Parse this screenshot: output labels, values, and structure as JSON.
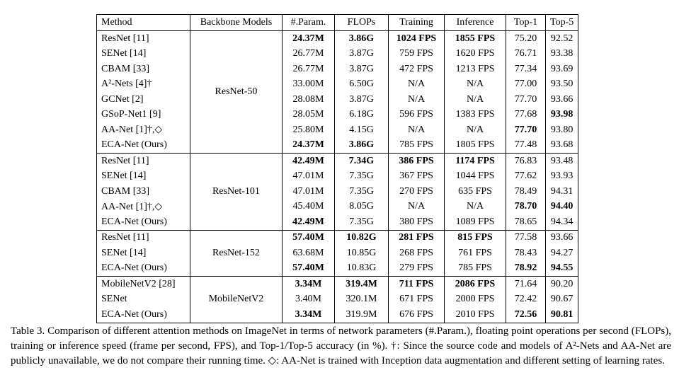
{
  "table": {
    "header": [
      "Method",
      "Backbone Models",
      "#.Param.",
      "FLOPs",
      "Training",
      "Inference",
      "Top-1",
      "Top-5"
    ],
    "groups": [
      {
        "backbone": "ResNet-50",
        "rows": [
          {
            "cells": [
              "ResNet [11]",
              "24.37M",
              "3.86G",
              "1024 FPS",
              "1855 FPS",
              "75.20",
              "92.52"
            ],
            "bold": [
              1,
              2,
              3,
              4
            ]
          },
          {
            "cells": [
              "SENet [14]",
              "26.77M",
              "3.87G",
              "759 FPS",
              "1620 FPS",
              "76.71",
              "93.38"
            ],
            "bold": []
          },
          {
            "cells": [
              "CBAM [33]",
              "26.77M",
              "3.87G",
              "472 FPS",
              "1213 FPS",
              "77.34",
              "93.69"
            ],
            "bold": []
          },
          {
            "cells": [
              "A²-Nets [4]†",
              "33.00M",
              "6.50G",
              "N/A",
              "N/A",
              "77.00",
              "93.50"
            ],
            "bold": []
          },
          {
            "cells": [
              "GCNet [2]",
              "28.08M",
              "3.87G",
              "N/A",
              "N/A",
              "77.70",
              "93.66"
            ],
            "bold": []
          },
          {
            "cells": [
              "GSoP-Net1 [9]",
              "28.05M",
              "6.18G",
              "596 FPS",
              "1383 FPS",
              "77.68",
              "93.98"
            ],
            "bold": [
              6
            ]
          },
          {
            "cells": [
              "AA-Net [1]†,◇",
              "25.80M",
              "4.15G",
              "N/A",
              "N/A",
              "77.70",
              "93.80"
            ],
            "bold": [
              5
            ]
          },
          {
            "cells": [
              "ECA-Net (Ours)",
              "24.37M",
              "3.86G",
              "785 FPS",
              "1805 FPS",
              "77.48",
              "93.68"
            ],
            "bold": [
              1,
              2
            ]
          }
        ]
      },
      {
        "backbone": "ResNet-101",
        "rows": [
          {
            "cells": [
              "ResNet [11]",
              "42.49M",
              "7.34G",
              "386 FPS",
              "1174 FPS",
              "76.83",
              "93.48"
            ],
            "bold": [
              1,
              2,
              3,
              4
            ]
          },
          {
            "cells": [
              "SENet [14]",
              "47.01M",
              "7.35G",
              "367 FPS",
              "1044 FPS",
              "77.62",
              "93.93"
            ],
            "bold": []
          },
          {
            "cells": [
              "CBAM [33]",
              "47.01M",
              "7.35G",
              "270 FPS",
              "635 FPS",
              "78.49",
              "94.31"
            ],
            "bold": []
          },
          {
            "cells": [
              "AA-Net [1]†,◇",
              "45.40M",
              "8.05G",
              "N/A",
              "N/A",
              "78.70",
              "94.40"
            ],
            "bold": [
              5,
              6
            ]
          },
          {
            "cells": [
              "ECA-Net (Ours)",
              "42.49M",
              "7.35G",
              "380 FPS",
              "1089 FPS",
              "78.65",
              "94.34"
            ],
            "bold": [
              1
            ]
          }
        ]
      },
      {
        "backbone": "ResNet-152",
        "rows": [
          {
            "cells": [
              "ResNet [11]",
              "57.40M",
              "10.82G",
              "281 FPS",
              "815 FPS",
              "77.58",
              "93.66"
            ],
            "bold": [
              1,
              2,
              3,
              4
            ]
          },
          {
            "cells": [
              "SENet [14]",
              "63.68M",
              "10.85G",
              "268 FPS",
              "761 FPS",
              "78.43",
              "94.27"
            ],
            "bold": []
          },
          {
            "cells": [
              "ECA-Net (Ours)",
              "57.40M",
              "10.83G",
              "279 FPS",
              "785 FPS",
              "78.92",
              "94.55"
            ],
            "bold": [
              1,
              5,
              6
            ]
          }
        ]
      },
      {
        "backbone": "MobileNetV2",
        "rows": [
          {
            "cells": [
              "MobileNetV2 [28]",
              "3.34M",
              "319.4M",
              "711 FPS",
              "2086 FPS",
              "71.64",
              "90.20"
            ],
            "bold": [
              1,
              2,
              3,
              4
            ]
          },
          {
            "cells": [
              "SENet",
              "3.40M",
              "320.1M",
              "671 FPS",
              "2000 FPS",
              "72.42",
              "90.67"
            ],
            "bold": []
          },
          {
            "cells": [
              "ECA-Net (Ours)",
              "3.34M",
              "319.9M",
              "676 FPS",
              "2010 FPS",
              "72.56",
              "90.81"
            ],
            "bold": [
              1,
              5,
              6
            ]
          }
        ]
      }
    ]
  },
  "caption": "Table 3. Comparison of different attention methods on ImageNet in terms of network parameters (#.Param.), floating point operations per second (FLOPs), training or inference speed (frame per second, FPS), and Top-1/Top-5 accuracy (in %). †: Since the source code and models of A²-Nets and AA-Net are publicly unavailable, we do not compare their running time. ◇: AA-Net is trained with Inception data augmentation and different setting of learning rates."
}
